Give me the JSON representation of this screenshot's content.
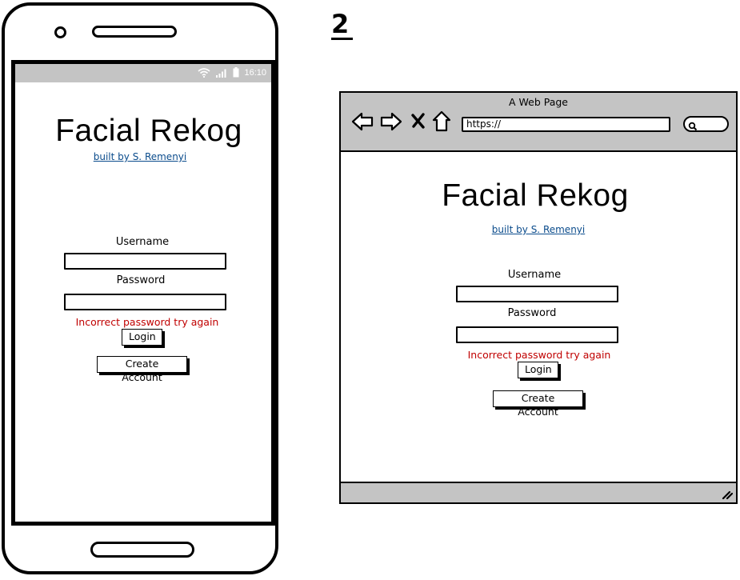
{
  "step_label": "2",
  "status_bar": {
    "time": "16:10",
    "icons": [
      "wifi-icon",
      "signal-icon",
      "battery-icon"
    ]
  },
  "browser": {
    "window_title": "A Web Page",
    "url": "https://",
    "nav_icons": [
      "back-arrow-icon",
      "forward-arrow-icon",
      "close-x-icon",
      "home-icon",
      "search-icon"
    ]
  },
  "login": {
    "title": "Facial Rekog",
    "byline": "built by S. Remenyi",
    "username_label": "Username",
    "username_value": "",
    "password_label": "Password",
    "password_value": "",
    "error_message": "Incorrect password try again",
    "login_button": "Login",
    "create_account_button": "Create Account"
  },
  "colors": {
    "chrome_gray": "#c4c4c4",
    "link_blue": "#0b4c8c",
    "error_red": "#c00000"
  }
}
